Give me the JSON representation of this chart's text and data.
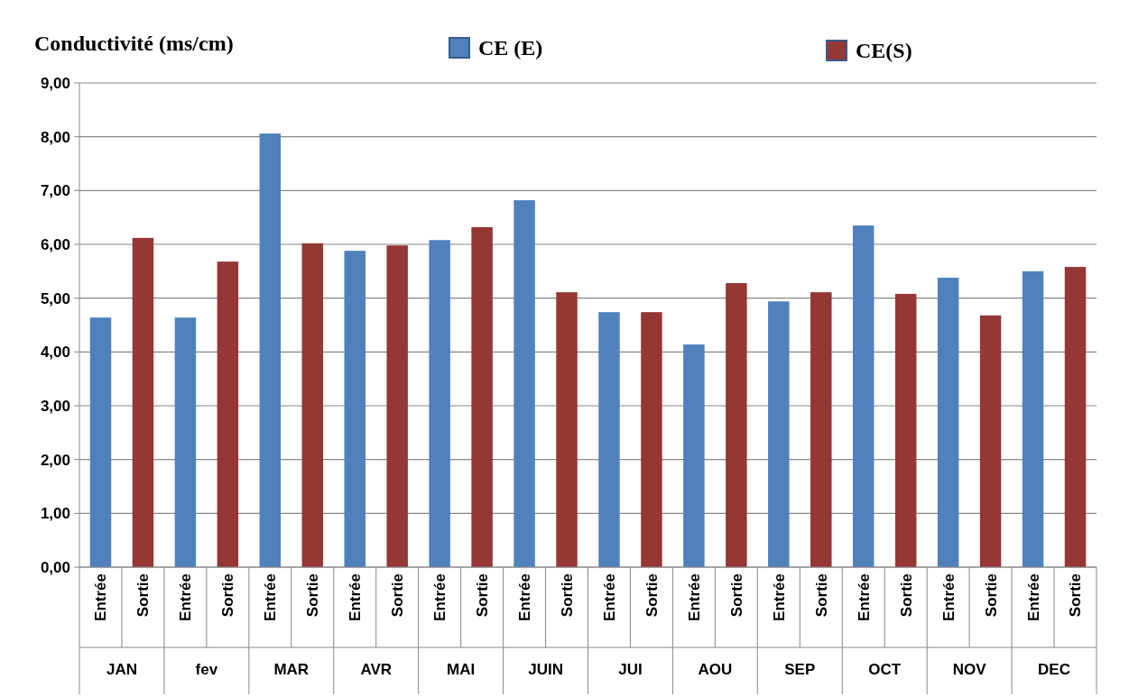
{
  "chart_data": {
    "type": "bar",
    "title": "Conductivité   (ms/cm)",
    "categories": [
      "Entrée",
      "Sortie",
      "Entrée",
      "Sortie",
      "Entrée",
      "Sortie",
      "Entrée",
      "Sortie",
      "Entrée",
      "Sortie",
      "Entrée",
      "Sortie",
      "Entrée",
      "Sortie",
      "Entrée",
      "Sortie",
      "Entrée",
      "Sortie",
      "Entrée",
      "Sortie",
      "Entrée",
      "Sortie",
      "Entrée",
      "Sortie"
    ],
    "series": [
      {
        "name": "CE (E)",
        "color": "#4f81bd",
        "values": [
          4.64,
          null,
          4.64,
          null,
          8.06,
          null,
          5.88,
          null,
          6.08,
          null,
          6.82,
          null,
          4.74,
          null,
          4.14,
          null,
          4.94,
          null,
          6.35,
          null,
          5.38,
          null,
          5.5,
          null
        ]
      },
      {
        "name": "CE(S)",
        "color": "#953735",
        "values": [
          null,
          6.12,
          null,
          5.68,
          null,
          6.02,
          null,
          5.98,
          null,
          6.32,
          null,
          5.11,
          null,
          4.74,
          null,
          5.28,
          null,
          5.11,
          null,
          5.08,
          null,
          4.68,
          null,
          5.58
        ]
      }
    ],
    "annotations": [
      "JAN",
      "fev",
      "MAR",
      "AVR",
      "MAI",
      "JUIN",
      "JUI",
      "AOU",
      "SEP",
      "OCT",
      "NOV",
      "DEC"
    ],
    "ylim": [
      0,
      9
    ],
    "yticks": [
      {
        "value": 0,
        "label": "0,00"
      },
      {
        "value": 1,
        "label": "1,00"
      },
      {
        "value": 2,
        "label": "2,00"
      },
      {
        "value": 3,
        "label": "3,00"
      },
      {
        "value": 4,
        "label": "4,00"
      },
      {
        "value": 5,
        "label": "5,00"
      },
      {
        "value": 6,
        "label": "6,00"
      },
      {
        "value": 7,
        "label": "7,00"
      },
      {
        "value": 8,
        "label": "8,00"
      },
      {
        "value": 9,
        "label": "9,00"
      }
    ],
    "grid": "y",
    "legend": "top"
  }
}
